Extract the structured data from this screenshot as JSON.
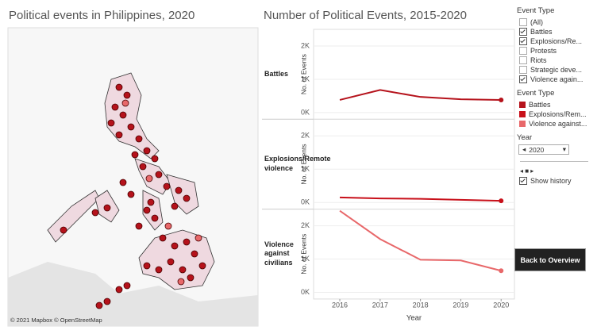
{
  "chart_data": [
    {
      "type": "map",
      "title": "Political events in Philippines, 2020",
      "attribution": "© 2021 Mapbox © OpenStreetMap"
    },
    {
      "type": "line",
      "title": "Number of Political Events, 2015-2020",
      "xlabel": "Year",
      "ylabel": "No. of Events",
      "x": [
        2016,
        2017,
        2018,
        2019,
        2020
      ],
      "xlim": [
        2015.35,
        2020.33
      ],
      "xticks": [
        2016,
        2017,
        2018,
        2019,
        2020
      ],
      "ylim": [
        -200,
        2500
      ],
      "yticks": [
        {
          "value": 0,
          "label": "0K"
        },
        {
          "value": 1000,
          "label": "1K"
        },
        {
          "value": 2000,
          "label": "2K"
        }
      ],
      "series": [
        {
          "name": "Battles",
          "color": "#b5121b",
          "values": [
            380,
            680,
            470,
            400,
            380
          ]
        },
        {
          "name": "Explosions/Remote violence",
          "color": "#c8101a",
          "values": [
            150,
            120,
            110,
            80,
            50
          ]
        },
        {
          "name": "Violence against civilians",
          "color": "#e8686a",
          "values": [
            2450,
            1600,
            980,
            960,
            650
          ]
        }
      ]
    }
  ],
  "sidebar": {
    "filter_title": "Event Type",
    "filter_options": [
      "(All)",
      "Battles",
      "Explosions/Re...",
      "Protests",
      "Riots",
      "Strategic deve...",
      "Violence again..."
    ],
    "filter_checked": [
      false,
      true,
      true,
      false,
      false,
      false,
      true
    ],
    "legend_title": "Event Type",
    "legend_items": [
      "Battles",
      "Explosions/Rem...",
      "Violence against..."
    ],
    "legend_colors": [
      "#b5121b",
      "#c8101a",
      "#e8686a"
    ],
    "year_title": "Year",
    "year_value": "2020",
    "history_label": "Show history",
    "history_checked": true,
    "button": "Back to Overview"
  }
}
